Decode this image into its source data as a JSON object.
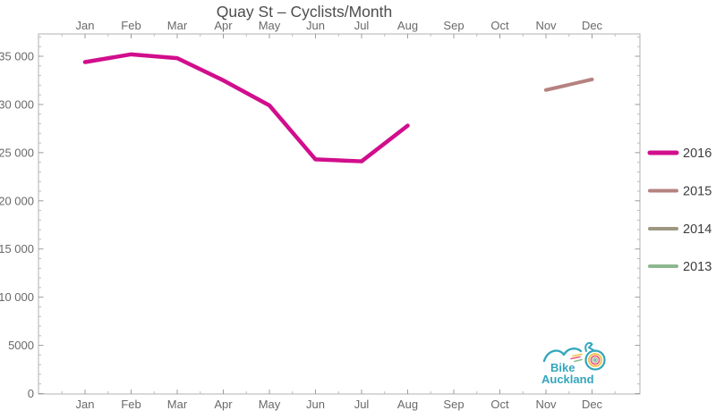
{
  "title": "Quay St – Cyclists/Month",
  "logo": {
    "line1": "Bike",
    "line2": "Auckland",
    "color": "#33a7bc"
  },
  "colors": {
    "series_2016": "#d10e8c",
    "series_2015": "#b5827f",
    "series_2014": "#9e9782",
    "series_2013": "#8db78f",
    "logo_teal": "#33a7bc",
    "wheel_yellow": "#f2c043",
    "wheel_pink": "#e85a7d",
    "wheel_green": "#84bd8e"
  },
  "chart_data": {
    "type": "line",
    "title": "Quay St – Cyclists/Month",
    "xlabel": "",
    "ylabel": "",
    "categories": [
      "Jan",
      "Feb",
      "Mar",
      "Apr",
      "May",
      "Jun",
      "Jul",
      "Aug",
      "Sep",
      "Oct",
      "Nov",
      "Dec"
    ],
    "x_labels_mirrored_top_and_bottom": true,
    "series": [
      {
        "name": "2016",
        "color": "#d10e8c",
        "values": [
          34400,
          35200,
          34800,
          32500,
          29900,
          24300,
          24100,
          27800,
          null,
          null,
          null,
          null
        ]
      },
      {
        "name": "2015",
        "color": "#b5827f",
        "values": [
          null,
          null,
          null,
          null,
          null,
          null,
          null,
          null,
          null,
          null,
          31500,
          32600
        ]
      },
      {
        "name": "2014",
        "color": "#9e9782",
        "values": [
          null,
          null,
          null,
          null,
          null,
          null,
          null,
          null,
          null,
          null,
          null,
          null
        ]
      },
      {
        "name": "2013",
        "color": "#8db78f",
        "values": [
          null,
          null,
          null,
          null,
          null,
          null,
          null,
          null,
          null,
          null,
          null,
          null
        ]
      }
    ],
    "ylim": [
      0,
      37300
    ],
    "y_ticks": [
      0,
      5000,
      10000,
      15000,
      20000,
      25000,
      30000,
      35000
    ],
    "y_tick_labels": [
      "0",
      "5000",
      "10 000",
      "15 000",
      "20 000",
      "25 000",
      "30 000",
      "35 000"
    ],
    "grid": false,
    "legend_position": "right"
  }
}
